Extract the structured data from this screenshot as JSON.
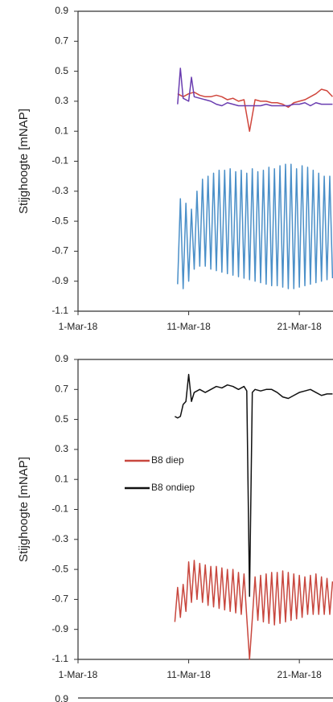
{
  "chart_data": [
    {
      "type": "line",
      "y_label": "Stijghoogte [mNAP]",
      "xlim": [
        "2018-03-01T00:00",
        "2018-03-24T01:00"
      ],
      "xticks": [
        {
          "value": "2018-03-01T00:00",
          "label": "1-Mar-18"
        },
        {
          "value": "2018-03-11T00:00",
          "label": "11-Mar-18"
        },
        {
          "value": "2018-03-21T00:00",
          "label": "21-Mar-18"
        }
      ],
      "ylim": [
        -1.1,
        0.9
      ],
      "yticks": [
        -1.1,
        -0.9,
        -0.7,
        -0.5,
        -0.3,
        -0.1,
        0.1,
        0.3,
        0.5,
        0.7,
        0.9
      ],
      "series": [
        {
          "color": "#d0463c",
          "x": [
            "2018-03-10T00:00",
            "2018-03-10T12:00",
            "2018-03-11T00:00",
            "2018-03-11T12:00",
            "2018-03-12T00:00",
            "2018-03-12T12:00",
            "2018-03-13T00:00",
            "2018-03-13T12:00",
            "2018-03-14T00:00",
            "2018-03-14T12:00",
            "2018-03-15T00:00",
            "2018-03-15T12:00",
            "2018-03-16T00:00",
            "2018-03-16T12:00",
            "2018-03-17T00:00",
            "2018-03-17T12:00",
            "2018-03-18T00:00",
            "2018-03-18T12:00",
            "2018-03-19T00:00",
            "2018-03-19T12:00",
            "2018-03-20T00:00",
            "2018-03-20T12:00",
            "2018-03-21T00:00",
            "2018-03-21T12:00",
            "2018-03-22T00:00",
            "2018-03-22T12:00",
            "2018-03-23T00:00",
            "2018-03-23T12:00",
            "2018-03-24T00:00"
          ],
          "values": [
            0.35,
            0.33,
            0.35,
            0.36,
            0.34,
            0.33,
            0.33,
            0.34,
            0.33,
            0.31,
            0.32,
            0.3,
            0.31,
            0.1,
            0.31,
            0.3,
            0.3,
            0.29,
            0.29,
            0.28,
            0.26,
            0.29,
            0.3,
            0.31,
            0.33,
            0.35,
            0.38,
            0.37,
            0.33
          ]
        },
        {
          "color": "#6a3db0",
          "x": [
            "2018-03-10T00:00",
            "2018-03-10T06:00",
            "2018-03-10T12:00",
            "2018-03-11T00:00",
            "2018-03-11T06:00",
            "2018-03-11T12:00",
            "2018-03-12T00:00",
            "2018-03-12T12:00",
            "2018-03-13T00:00",
            "2018-03-13T12:00",
            "2018-03-14T00:00",
            "2018-03-14T12:00",
            "2018-03-15T00:00",
            "2018-03-15T12:00",
            "2018-03-16T00:00",
            "2018-03-16T12:00",
            "2018-03-17T00:00",
            "2018-03-17T12:00",
            "2018-03-18T00:00",
            "2018-03-18T12:00",
            "2018-03-19T00:00",
            "2018-03-19T12:00",
            "2018-03-20T00:00",
            "2018-03-20T12:00",
            "2018-03-21T00:00",
            "2018-03-21T12:00",
            "2018-03-22T00:00",
            "2018-03-22T12:00",
            "2018-03-23T00:00",
            "2018-03-23T12:00",
            "2018-03-24T00:00"
          ],
          "values": [
            0.28,
            0.52,
            0.32,
            0.3,
            0.46,
            0.33,
            0.32,
            0.31,
            0.3,
            0.28,
            0.27,
            0.29,
            0.28,
            0.27,
            0.27,
            0.27,
            0.27,
            0.27,
            0.28,
            0.27,
            0.27,
            0.27,
            0.27,
            0.28,
            0.28,
            0.29,
            0.27,
            0.29,
            0.28,
            0.28,
            0.28
          ]
        },
        {
          "color": "#4a8fc8",
          "x": [
            "2018-03-10T00:00",
            "2018-03-10T06:00",
            "2018-03-10T12:00",
            "2018-03-10T18:00",
            "2018-03-11T00:00",
            "2018-03-11T06:00",
            "2018-03-11T12:00",
            "2018-03-11T18:00",
            "2018-03-12T00:00",
            "2018-03-12T06:00",
            "2018-03-12T12:00",
            "2018-03-12T18:00",
            "2018-03-13T00:00",
            "2018-03-13T06:00",
            "2018-03-13T12:00",
            "2018-03-13T18:00",
            "2018-03-14T00:00",
            "2018-03-14T06:00",
            "2018-03-14T12:00",
            "2018-03-14T18:00",
            "2018-03-15T00:00",
            "2018-03-15T06:00",
            "2018-03-15T12:00",
            "2018-03-15T18:00",
            "2018-03-16T00:00",
            "2018-03-16T06:00",
            "2018-03-16T12:00",
            "2018-03-16T18:00",
            "2018-03-17T00:00",
            "2018-03-17T06:00",
            "2018-03-17T12:00",
            "2018-03-17T18:00",
            "2018-03-18T00:00",
            "2018-03-18T06:00",
            "2018-03-18T12:00",
            "2018-03-18T18:00",
            "2018-03-19T00:00",
            "2018-03-19T06:00",
            "2018-03-19T12:00",
            "2018-03-19T18:00",
            "2018-03-20T00:00",
            "2018-03-20T06:00",
            "2018-03-20T12:00",
            "2018-03-20T18:00",
            "2018-03-21T00:00",
            "2018-03-21T06:00",
            "2018-03-21T12:00",
            "2018-03-21T18:00",
            "2018-03-22T00:00",
            "2018-03-22T06:00",
            "2018-03-22T12:00",
            "2018-03-22T18:00",
            "2018-03-23T00:00",
            "2018-03-23T06:00",
            "2018-03-23T12:00",
            "2018-03-23T18:00",
            "2018-03-24T00:00"
          ],
          "values": [
            -0.92,
            -0.35,
            -0.95,
            -0.38,
            -0.9,
            -0.42,
            -0.82,
            -0.3,
            -0.8,
            -0.22,
            -0.8,
            -0.2,
            -0.82,
            -0.18,
            -0.83,
            -0.16,
            -0.84,
            -0.16,
            -0.85,
            -0.15,
            -0.86,
            -0.17,
            -0.87,
            -0.16,
            -0.88,
            -0.18,
            -0.89,
            -0.15,
            -0.9,
            -0.17,
            -0.91,
            -0.16,
            -0.92,
            -0.14,
            -0.93,
            -0.15,
            -0.93,
            -0.13,
            -0.94,
            -0.12,
            -0.95,
            -0.12,
            -0.95,
            -0.15,
            -0.94,
            -0.13,
            -0.93,
            -0.14,
            -0.92,
            -0.16,
            -0.91,
            -0.18,
            -0.9,
            -0.2,
            -0.89,
            -0.2,
            -0.88
          ]
        }
      ]
    },
    {
      "type": "line",
      "y_label": "Stijghoogte [mNAP]",
      "legend": "left",
      "xlim": [
        "2018-03-01T00:00",
        "2018-03-24T01:00"
      ],
      "xticks": [
        {
          "value": "2018-03-01T00:00",
          "label": "1-Mar-18"
        },
        {
          "value": "2018-03-11T00:00",
          "label": "11-Mar-18"
        },
        {
          "value": "2018-03-21T00:00",
          "label": "21-Mar-18"
        }
      ],
      "ylim": [
        -1.1,
        0.9
      ],
      "yticks": [
        -1.1,
        -0.9,
        -0.7,
        -0.5,
        -0.3,
        -0.1,
        0.1,
        0.3,
        0.5,
        0.7,
        0.9
      ],
      "series": [
        {
          "name": "B8 diep",
          "color": "#c8473e",
          "x": [
            "2018-03-09T18:00",
            "2018-03-10T00:00",
            "2018-03-10T06:00",
            "2018-03-10T12:00",
            "2018-03-10T18:00",
            "2018-03-11T00:00",
            "2018-03-11T06:00",
            "2018-03-11T12:00",
            "2018-03-11T18:00",
            "2018-03-12T00:00",
            "2018-03-12T06:00",
            "2018-03-12T12:00",
            "2018-03-12T18:00",
            "2018-03-13T00:00",
            "2018-03-13T06:00",
            "2018-03-13T12:00",
            "2018-03-13T18:00",
            "2018-03-14T00:00",
            "2018-03-14T06:00",
            "2018-03-14T12:00",
            "2018-03-14T18:00",
            "2018-03-15T00:00",
            "2018-03-15T06:00",
            "2018-03-15T12:00",
            "2018-03-15T18:00",
            "2018-03-16T00:00",
            "2018-03-16T06:00",
            "2018-03-16T12:00",
            "2018-03-16T18:00",
            "2018-03-17T00:00",
            "2018-03-17T06:00",
            "2018-03-17T12:00",
            "2018-03-17T18:00",
            "2018-03-18T00:00",
            "2018-03-18T06:00",
            "2018-03-18T12:00",
            "2018-03-18T18:00",
            "2018-03-19T00:00",
            "2018-03-19T06:00",
            "2018-03-19T12:00",
            "2018-03-19T18:00",
            "2018-03-20T00:00",
            "2018-03-20T06:00",
            "2018-03-20T12:00",
            "2018-03-20T18:00",
            "2018-03-21T00:00",
            "2018-03-21T06:00",
            "2018-03-21T12:00",
            "2018-03-21T18:00",
            "2018-03-22T00:00",
            "2018-03-22T06:00",
            "2018-03-22T12:00",
            "2018-03-22T18:00",
            "2018-03-23T00:00",
            "2018-03-23T06:00",
            "2018-03-23T12:00",
            "2018-03-23T18:00",
            "2018-03-24T00:00"
          ],
          "values": [
            -0.85,
            -0.62,
            -0.82,
            -0.6,
            -0.78,
            -0.45,
            -0.72,
            -0.44,
            -0.7,
            -0.46,
            -0.72,
            -0.47,
            -0.74,
            -0.48,
            -0.75,
            -0.48,
            -0.76,
            -0.49,
            -0.77,
            -0.5,
            -0.78,
            -0.5,
            -0.79,
            -0.52,
            -0.8,
            -0.53,
            -0.82,
            -1.1,
            -0.83,
            -0.55,
            -0.84,
            -0.54,
            -0.85,
            -0.53,
            -0.86,
            -0.52,
            -0.87,
            -0.52,
            -0.86,
            -0.51,
            -0.85,
            -0.52,
            -0.84,
            -0.53,
            -0.83,
            -0.54,
            -0.82,
            -0.55,
            -0.8,
            -0.54,
            -0.8,
            -0.53,
            -0.8,
            -0.55,
            -0.8,
            -0.56,
            -0.8,
            -0.58
          ]
        },
        {
          "name": "B8 ondiep",
          "color": "#111111",
          "x": [
            "2018-03-09T18:00",
            "2018-03-10T00:00",
            "2018-03-10T06:00",
            "2018-03-10T12:00",
            "2018-03-10T18:00",
            "2018-03-11T00:00",
            "2018-03-11T06:00",
            "2018-03-11T12:00",
            "2018-03-12T00:00",
            "2018-03-12T12:00",
            "2018-03-13T00:00",
            "2018-03-13T12:00",
            "2018-03-14T00:00",
            "2018-03-14T12:00",
            "2018-03-15T00:00",
            "2018-03-15T12:00",
            "2018-03-16T00:00",
            "2018-03-16T06:00",
            "2018-03-16T12:00",
            "2018-03-16T18:00",
            "2018-03-17T00:00",
            "2018-03-17T12:00",
            "2018-03-18T00:00",
            "2018-03-18T12:00",
            "2018-03-19T00:00",
            "2018-03-19T12:00",
            "2018-03-20T00:00",
            "2018-03-20T12:00",
            "2018-03-21T00:00",
            "2018-03-21T12:00",
            "2018-03-22T00:00",
            "2018-03-22T12:00",
            "2018-03-23T00:00",
            "2018-03-23T12:00",
            "2018-03-24T00:00"
          ],
          "values": [
            0.52,
            0.51,
            0.52,
            0.6,
            0.62,
            0.8,
            0.62,
            0.68,
            0.7,
            0.68,
            0.7,
            0.72,
            0.71,
            0.73,
            0.72,
            0.7,
            0.72,
            0.69,
            -0.68,
            0.68,
            0.7,
            0.69,
            0.7,
            0.7,
            0.68,
            0.65,
            0.64,
            0.66,
            0.68,
            0.69,
            0.7,
            0.68,
            0.66,
            0.67,
            0.67
          ]
        }
      ]
    },
    {
      "type": "line",
      "yticks": [
        0.9
      ]
    }
  ]
}
